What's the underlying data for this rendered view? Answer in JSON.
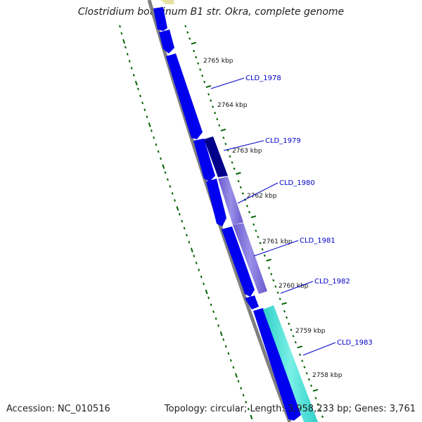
{
  "title": "Clostridium botulinum B1 str. Okra, complete genome",
  "accession": "Accession: NC_010516",
  "summary": "Topology: circular; Length: 3,958,233 bp; Genes: 3,761",
  "ruler": [
    "2765 kbp",
    "2764 kbp",
    "2763 kbp",
    "2762 kbp",
    "2761 kbp",
    "2760 kbp",
    "2759 kbp",
    "2758 kbp"
  ],
  "genes": [
    "CLD_1978",
    "CLD_1979",
    "CLD_1980",
    "CLD_1981",
    "CLD_1982",
    "CLD_1983"
  ],
  "colors": {
    "backbone": "#808080",
    "cds": "#0000ee",
    "cds_dark": "#00008b",
    "lavender": "#7b68ee",
    "aqua": "#40e0d0",
    "yellow": "#e8e0a0",
    "tick": "#006400",
    "label": "#0000cc"
  }
}
